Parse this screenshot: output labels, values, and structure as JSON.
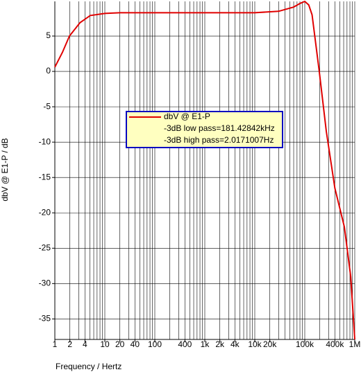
{
  "chart_data": {
    "type": "line",
    "xlabel": "Frequency / Hertz",
    "ylabel": "dbV @ E1-P / dB",
    "xscale": "log",
    "xlim": [
      1,
      1000000
    ],
    "ylim": [
      -37.9,
      9.9
    ],
    "xticks": [
      1,
      2,
      4,
      10,
      20,
      40,
      100,
      400,
      {
        "value": 1000,
        "label": "1k"
      },
      {
        "value": 2000,
        "label": "2k"
      },
      {
        "value": 4000,
        "label": "4k"
      },
      {
        "value": 10000,
        "label": "10k"
      },
      {
        "value": 20000,
        "label": "20k"
      },
      {
        "value": 100000,
        "label": "100k"
      },
      {
        "value": 400000,
        "label": "400k"
      },
      {
        "value": 1000000,
        "label": "1M"
      }
    ],
    "x_gridlines": [
      1,
      2,
      3,
      4,
      5,
      6,
      7,
      8,
      9,
      10,
      20,
      30,
      40,
      50,
      60,
      70,
      80,
      90,
      100,
      200,
      300,
      400,
      500,
      600,
      700,
      800,
      900,
      1000,
      2000,
      3000,
      4000,
      5000,
      6000,
      7000,
      8000,
      9000,
      10000,
      20000,
      30000,
      40000,
      50000,
      60000,
      70000,
      80000,
      90000,
      100000,
      200000,
      300000,
      400000,
      500000,
      600000,
      700000,
      800000,
      900000,
      1000000
    ],
    "yticks": [
      5,
      0,
      -5,
      -10,
      -15,
      -20,
      -25,
      -30,
      -35
    ],
    "grid": true,
    "legend_lines": [
      "-3dB low pass=181.42842kHz",
      "-3dB high pass=2.0171007Hz"
    ],
    "series": [
      {
        "name": "dbV @ E1-P",
        "color": "#e00000",
        "x": [
          1,
          1.42,
          1.96,
          3.2,
          5.1,
          10,
          20,
          100,
          1000,
          10000,
          30000,
          60000,
          80000,
          100000,
          120000,
          140000,
          195000,
          270000,
          400000,
          620000,
          830000,
          1000000
        ],
        "values": [
          0.6,
          2.7,
          5,
          6.9,
          7.9,
          8.2,
          8.3,
          8.3,
          8.3,
          8.3,
          8.5,
          9.1,
          9.6,
          9.9,
          9.4,
          8,
          0,
          -8.5,
          -16.5,
          -22,
          -29,
          -37.9
        ]
      }
    ]
  }
}
